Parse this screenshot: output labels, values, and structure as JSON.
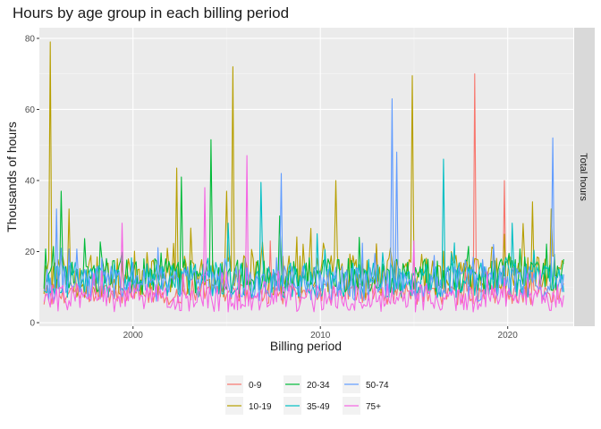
{
  "chart_data": {
    "type": "line",
    "title": "Hours by age group in each billing period",
    "xlabel": "Billing period",
    "ylabel": "Thousands of hours",
    "facet_label": "Total hours",
    "xlim": [
      1995.0,
      2023.5
    ],
    "ylim": [
      -1,
      83
    ],
    "x_ticks": [
      2000,
      2010,
      2020
    ],
    "x_tick_labels": [
      "2000",
      "2010",
      "2020"
    ],
    "y_ticks": [
      0,
      20,
      40,
      60,
      80
    ],
    "y_tick_labels": [
      "0",
      "20",
      "40",
      "60",
      "80"
    ],
    "grid": true,
    "legend_position": "bottom",
    "x_start": 1995.25,
    "x_end": 2023.0,
    "x_step": 0.0833,
    "series": [
      {
        "name": "0-9",
        "color": "#F8766D",
        "base": 8,
        "amp": 3,
        "spikes": [
          [
            2018.2,
            70
          ],
          [
            2019.8,
            40
          ],
          [
            2007.3,
            23
          ],
          [
            2013.0,
            22
          ]
        ]
      },
      {
        "name": "10-19",
        "color": "#B79F00",
        "base": 13,
        "amp": 6,
        "spikes": [
          [
            1995.6,
            79
          ],
          [
            2005.3,
            72
          ],
          [
            2014.9,
            69.5
          ],
          [
            2002.3,
            43.5
          ],
          [
            2010.8,
            40
          ],
          [
            1996.6,
            32
          ],
          [
            2021.3,
            34
          ],
          [
            2022.3,
            32
          ],
          [
            2005.0,
            37
          ]
        ]
      },
      {
        "name": "20-34",
        "color": "#00BA38",
        "base": 13,
        "amp": 5,
        "spikes": [
          [
            2004.2,
            51.5
          ],
          [
            2002.6,
            41
          ],
          [
            1996.2,
            37
          ],
          [
            2007.8,
            30
          ],
          [
            2012.1,
            24
          ]
        ]
      },
      {
        "name": "35-49",
        "color": "#00BFC4",
        "base": 12,
        "amp": 5,
        "spikes": [
          [
            2016.6,
            46
          ],
          [
            2006.8,
            39.5
          ],
          [
            2005.1,
            28
          ],
          [
            2009.8,
            25
          ],
          [
            2020.2,
            28
          ]
        ]
      },
      {
        "name": "50-74",
        "color": "#619CFF",
        "base": 11,
        "amp": 5,
        "spikes": [
          [
            2013.8,
            63
          ],
          [
            2022.4,
            52
          ],
          [
            2014.1,
            48
          ],
          [
            2007.9,
            42
          ],
          [
            1995.9,
            32
          ],
          [
            2019.2,
            22
          ]
        ]
      },
      {
        "name": "75+",
        "color": "#F564E3",
        "base": 7,
        "amp": 4,
        "spikes": [
          [
            2006.1,
            47
          ],
          [
            2003.8,
            38
          ],
          [
            1999.4,
            28
          ],
          [
            2015.0,
            23
          ]
        ]
      }
    ]
  }
}
